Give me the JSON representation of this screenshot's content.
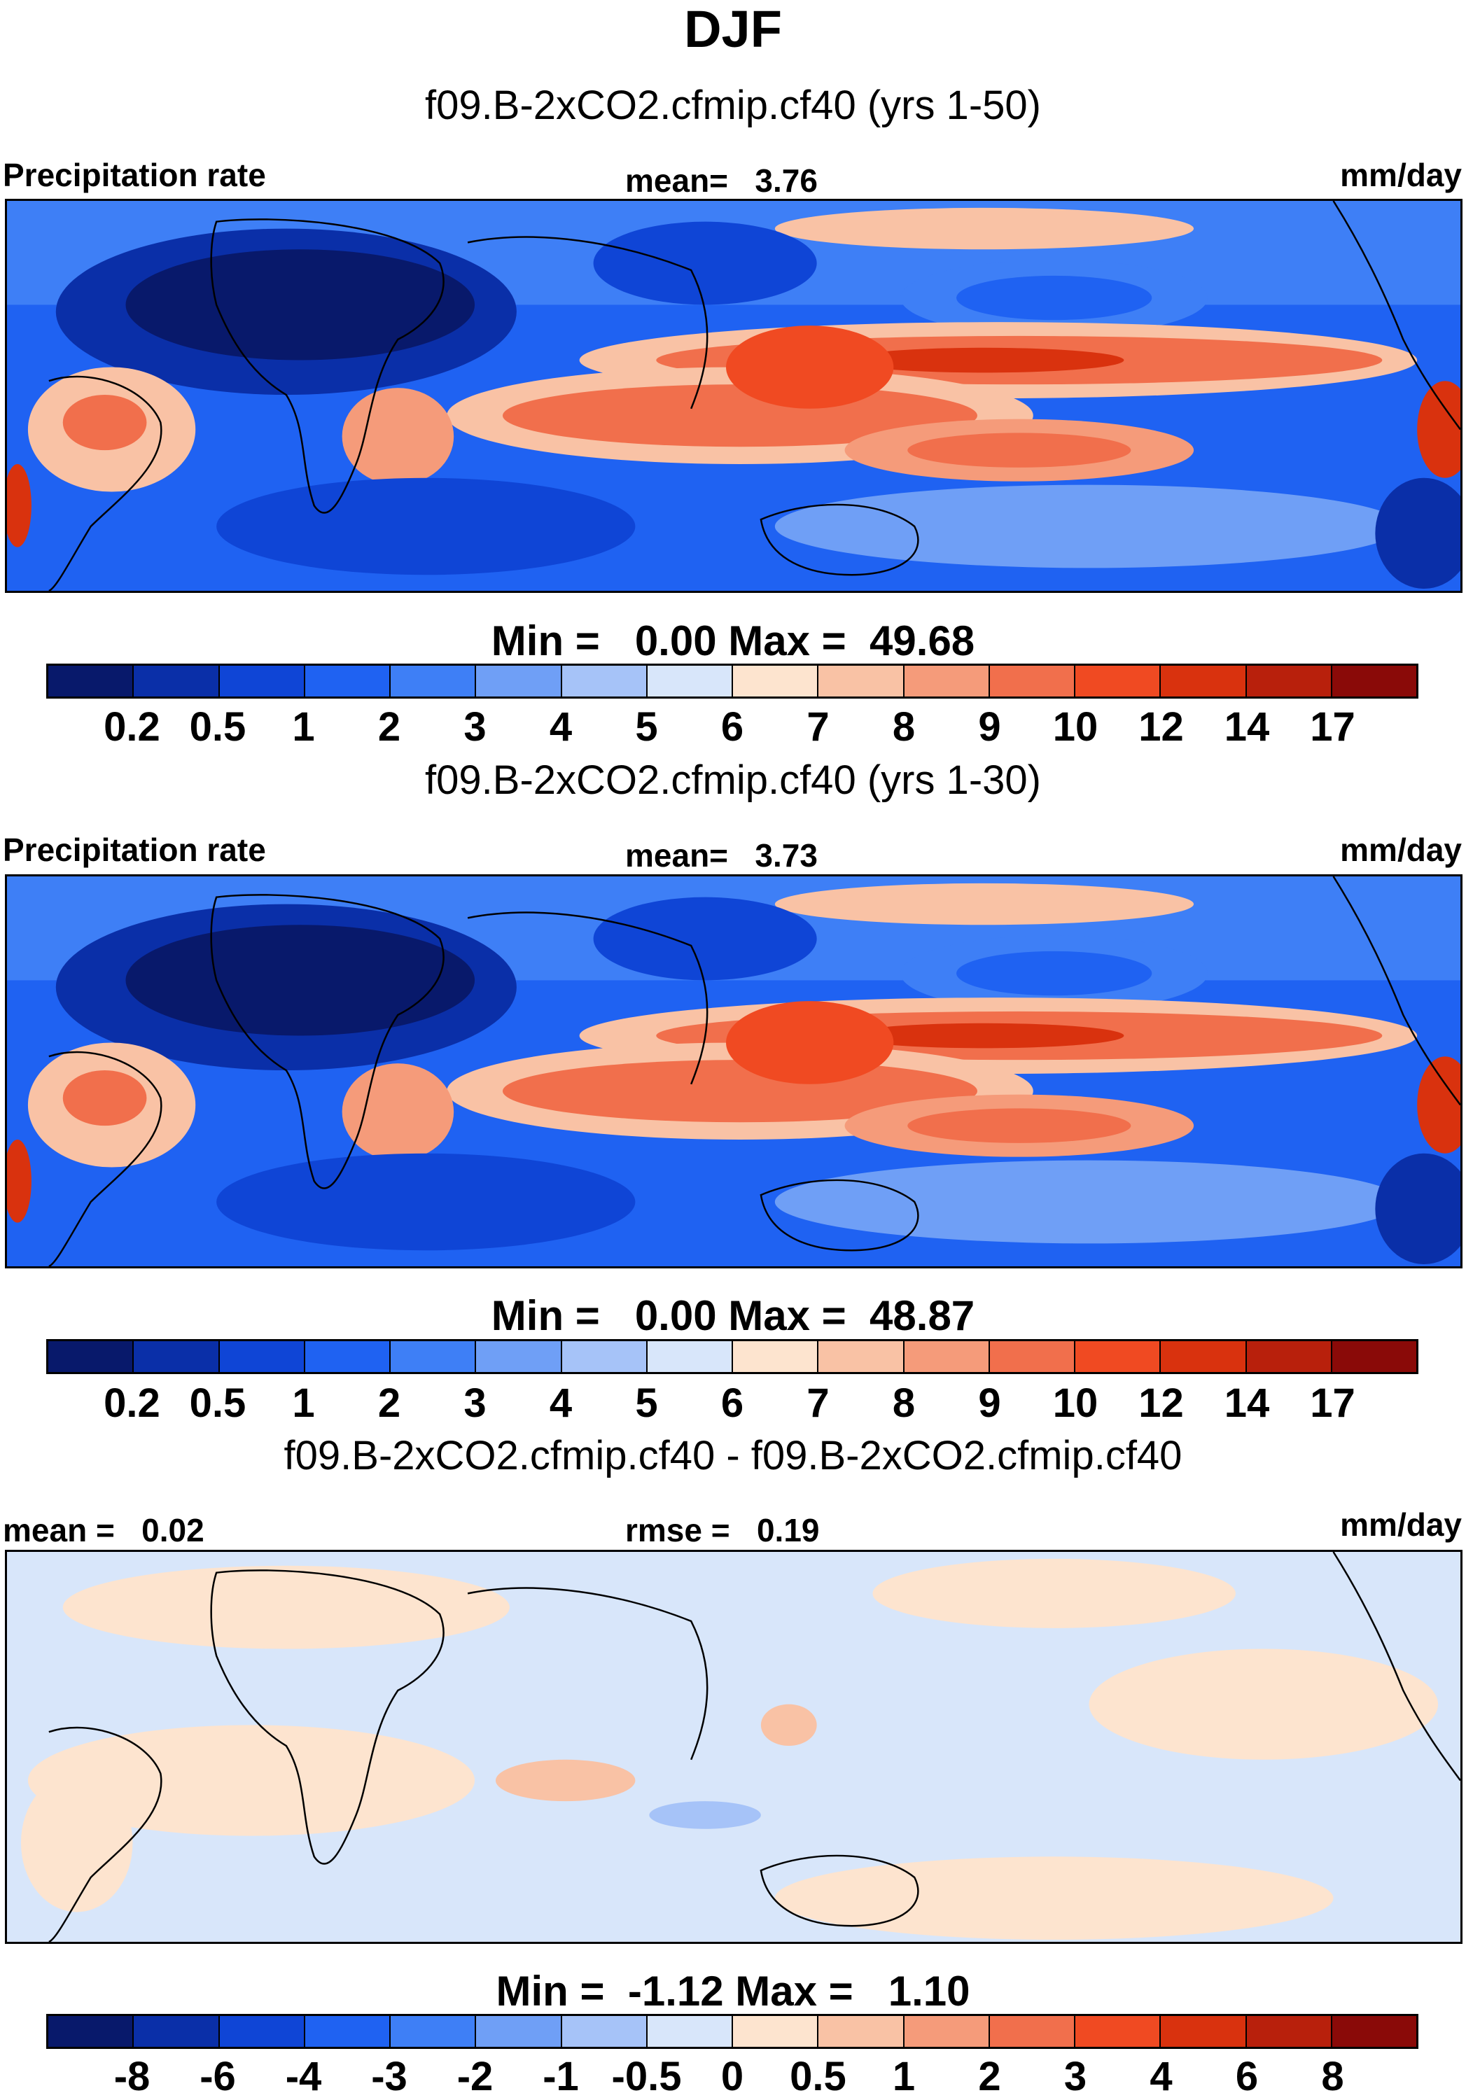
{
  "title": "DJF",
  "colors": {
    "abs_scale": [
      "#08196b",
      "#0a2fa8",
      "#0f45d6",
      "#1f62f2",
      "#3e7ff6",
      "#6f9ff6",
      "#a6c3f8",
      "#d8e6fa",
      "#fde4cf",
      "#f9c2a5",
      "#f59b7a",
      "#f16f4c",
      "#f04a22",
      "#d9320e",
      "#b8200c",
      "#8a0a08"
    ],
    "diff_scale": [
      "#08196b",
      "#0a2fa8",
      "#0f45d6",
      "#1f62f2",
      "#3e7ff6",
      "#6f9ff6",
      "#a6c3f8",
      "#d8e6fa",
      "#fde4cf",
      "#f9c2a5",
      "#f59b7a",
      "#f16f4c",
      "#f04a22",
      "#d9320e",
      "#b8200c",
      "#8a0a08"
    ]
  },
  "panels": [
    {
      "title": "f09.B-2xCO2.cfmip.cf40 (yrs 1-50)",
      "left_label": "Precipitation rate",
      "center_label": "mean=   3.76",
      "units": "mm/day",
      "minmax": "Min =   0.00 Max =  49.68",
      "ticks": [
        "0.2",
        "0.5",
        "1",
        "2",
        "3",
        "4",
        "5",
        "6",
        "7",
        "8",
        "9",
        "10",
        "12",
        "14",
        "17"
      ],
      "mean_value": 3.76,
      "min_value": 0.0,
      "max_value": 49.68
    },
    {
      "title": "f09.B-2xCO2.cfmip.cf40 (yrs 1-30)",
      "left_label": "Precipitation rate",
      "center_label": "mean=   3.73",
      "units": "mm/day",
      "minmax": "Min =   0.00 Max =  48.87",
      "ticks": [
        "0.2",
        "0.5",
        "1",
        "2",
        "3",
        "4",
        "5",
        "6",
        "7",
        "8",
        "9",
        "10",
        "12",
        "14",
        "17"
      ],
      "mean_value": 3.73,
      "min_value": 0.0,
      "max_value": 48.87
    },
    {
      "title": "f09.B-2xCO2.cfmip.cf40 - f09.B-2xCO2.cfmip.cf40",
      "left_label": "mean =   0.02",
      "center_label": "rmse =   0.19",
      "units": "mm/day",
      "minmax": "Min =  -1.12 Max =   1.10",
      "ticks": [
        "-8",
        "-6",
        "-4",
        "-3",
        "-2",
        "-1",
        "-0.5",
        "0",
        "0.5",
        "1",
        "2",
        "3",
        "4",
        "6",
        "8"
      ],
      "mean_value": 0.02,
      "rmse_value": 0.19,
      "min_value": -1.12,
      "max_value": 1.1
    }
  ]
}
